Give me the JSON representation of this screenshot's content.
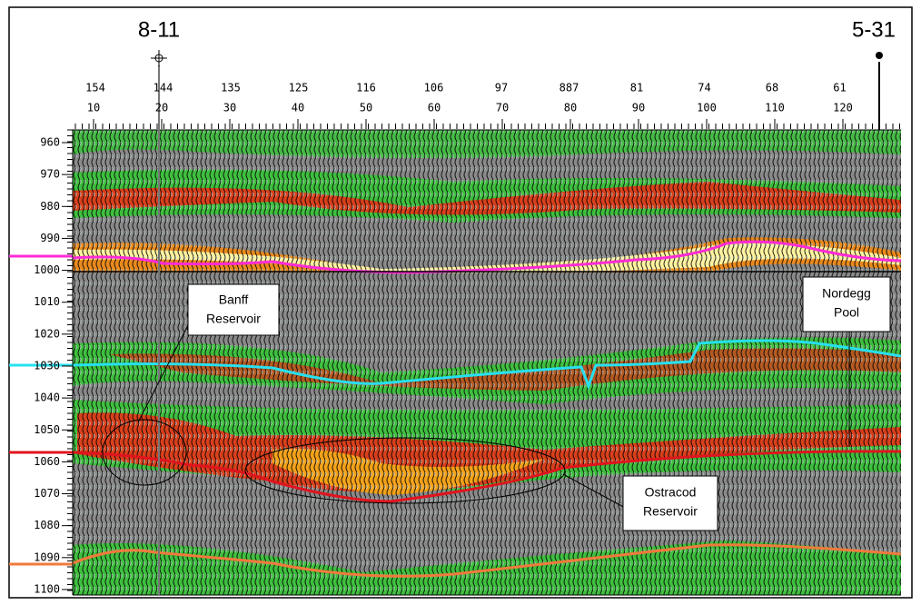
{
  "wells": [
    {
      "label": "8-11"
    },
    {
      "label": "5-31"
    }
  ],
  "top_axis": {
    "cdp_row": [
      "154",
      "144",
      "135",
      "125",
      "116",
      "106",
      "97",
      "887",
      "81",
      "74",
      "68",
      "61"
    ],
    "trace_row": [
      "10",
      "20",
      "30",
      "40",
      "50",
      "60",
      "70",
      "80",
      "90",
      "100",
      "110",
      "120"
    ]
  },
  "depth_axis": {
    "ticks": [
      "960",
      "970",
      "980",
      "990",
      "1000",
      "1010",
      "1020",
      "1030",
      "1040",
      "1050",
      "1060",
      "1070",
      "1080",
      "1090",
      "1100"
    ]
  },
  "annotations": [
    {
      "lines": [
        "Banff",
        "Reservoir"
      ]
    },
    {
      "lines": [
        "Nordegg",
        "Pool"
      ]
    },
    {
      "lines": [
        "Ostracod",
        "Reservoir"
      ]
    }
  ]
}
